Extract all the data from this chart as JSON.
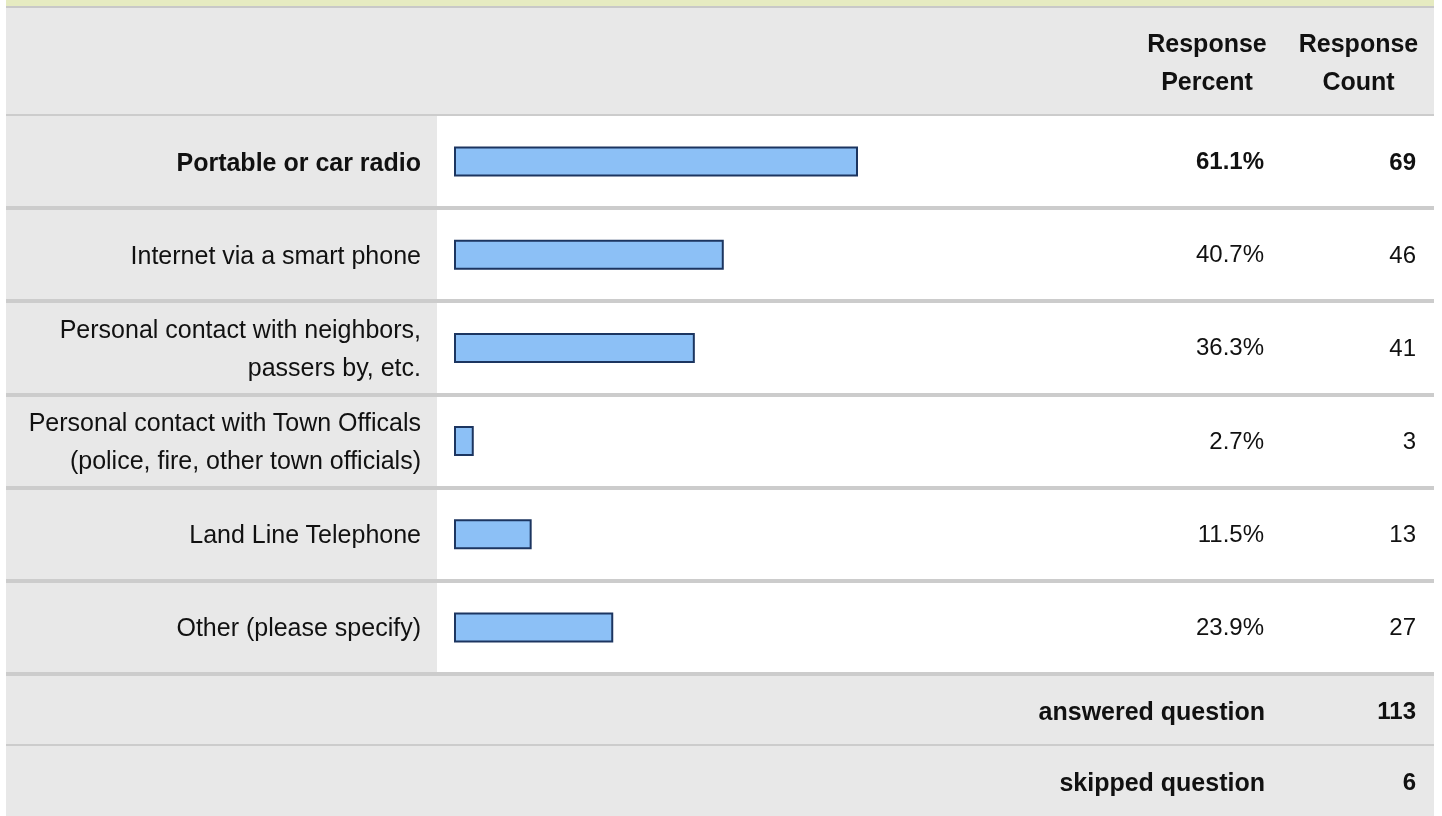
{
  "chart_data": {
    "type": "bar",
    "orientation": "horizontal",
    "categories": [
      "Portable or car radio",
      "Internet via a smart phone",
      "Personal contact with neighbors, passers by, etc.",
      "Personal contact with Town Officals (police, fire, other town officials)",
      "Land Line Telephone",
      "Other (please specify)"
    ],
    "values": [
      61.1,
      40.7,
      36.3,
      2.7,
      11.5,
      23.9
    ],
    "value_labels": [
      "61.1%",
      "40.7%",
      "36.3%",
      "2.7%",
      "11.5%",
      "23.9%"
    ],
    "color": "#8cc0f6",
    "tick_labels": "y",
    "annotations": [
      "Response Percent",
      "Response Count",
      "69",
      "46",
      "41",
      "3",
      "13",
      "27",
      "answered question",
      "113",
      "skipped question",
      "6"
    ]
  }
}
